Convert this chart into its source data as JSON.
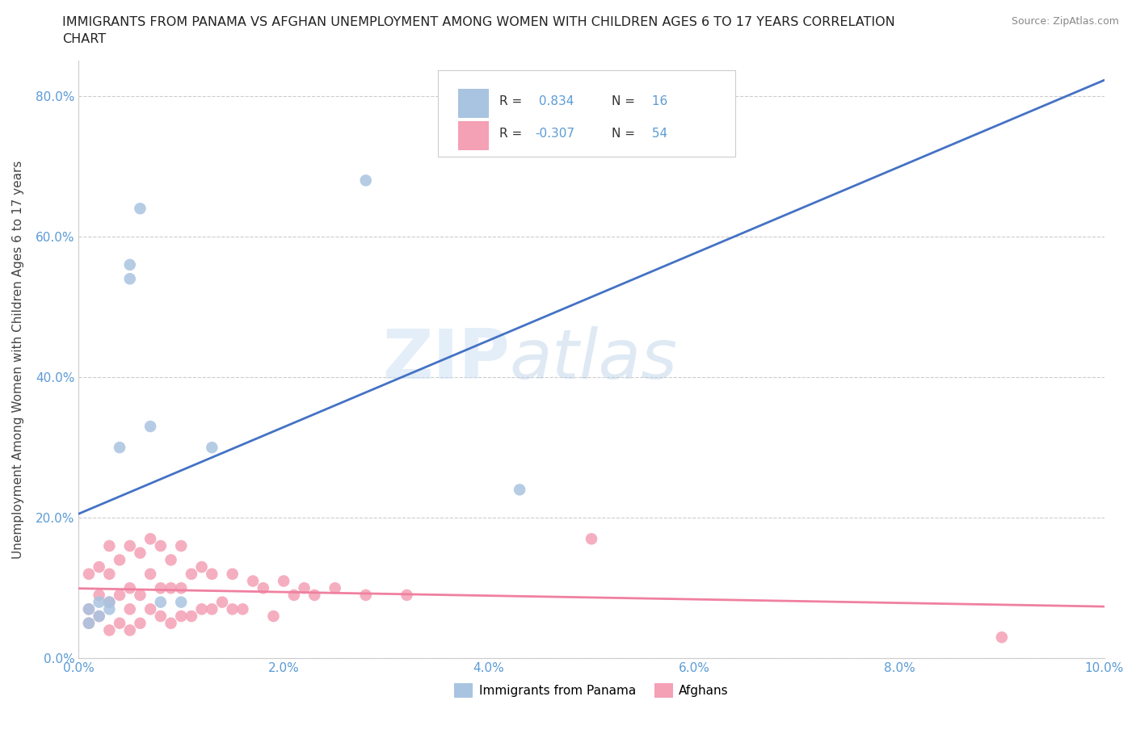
{
  "title_line1": "IMMIGRANTS FROM PANAMA VS AFGHAN UNEMPLOYMENT AMONG WOMEN WITH CHILDREN AGES 6 TO 17 YEARS CORRELATION",
  "title_line2": "CHART",
  "source": "Source: ZipAtlas.com",
  "ylabel": "Unemployment Among Women with Children Ages 6 to 17 years",
  "xlim": [
    0.0,
    0.1
  ],
  "ylim": [
    0.0,
    0.85
  ],
  "xticks": [
    0.0,
    0.02,
    0.04,
    0.06,
    0.08,
    0.1
  ],
  "xticklabels": [
    "0.0%",
    "2.0%",
    "4.0%",
    "6.0%",
    "8.0%",
    "10.0%"
  ],
  "yticks": [
    0.0,
    0.2,
    0.4,
    0.6,
    0.8
  ],
  "yticklabels": [
    "0.0%",
    "20.0%",
    "40.0%",
    "60.0%",
    "80.0%"
  ],
  "panama_color": "#a8c4e0",
  "afghan_color": "#f4a0b5",
  "panama_line_color": "#4472c4",
  "afghan_line_color": "#f080a0",
  "panama_R": 0.834,
  "panama_N": 16,
  "afghan_R": -0.307,
  "afghan_N": 54,
  "legend_label_panama": "Immigrants from Panama",
  "legend_label_afghan": "Afghans",
  "watermark_zip": "ZIP",
  "watermark_atlas": "atlas",
  "background_color": "#ffffff",
  "tick_color": "#5b9bd5",
  "panama_x": [
    0.001,
    0.001,
    0.002,
    0.002,
    0.003,
    0.003,
    0.004,
    0.005,
    0.005,
    0.006,
    0.007,
    0.008,
    0.01,
    0.013,
    0.028,
    0.043
  ],
  "panama_y": [
    0.05,
    0.07,
    0.06,
    0.08,
    0.08,
    0.07,
    0.3,
    0.54,
    0.56,
    0.64,
    0.33,
    0.08,
    0.08,
    0.3,
    0.68,
    0.24
  ],
  "afghan_x": [
    0.001,
    0.001,
    0.001,
    0.002,
    0.002,
    0.002,
    0.003,
    0.003,
    0.003,
    0.003,
    0.004,
    0.004,
    0.004,
    0.005,
    0.005,
    0.005,
    0.005,
    0.006,
    0.006,
    0.006,
    0.007,
    0.007,
    0.007,
    0.008,
    0.008,
    0.008,
    0.009,
    0.009,
    0.009,
    0.01,
    0.01,
    0.01,
    0.011,
    0.011,
    0.012,
    0.012,
    0.013,
    0.013,
    0.014,
    0.015,
    0.015,
    0.016,
    0.017,
    0.018,
    0.019,
    0.02,
    0.021,
    0.022,
    0.023,
    0.025,
    0.028,
    0.032,
    0.05,
    0.09
  ],
  "afghan_y": [
    0.05,
    0.07,
    0.12,
    0.06,
    0.09,
    0.13,
    0.04,
    0.08,
    0.12,
    0.16,
    0.05,
    0.09,
    0.14,
    0.04,
    0.07,
    0.1,
    0.16,
    0.05,
    0.09,
    0.15,
    0.07,
    0.12,
    0.17,
    0.06,
    0.1,
    0.16,
    0.05,
    0.1,
    0.14,
    0.06,
    0.1,
    0.16,
    0.06,
    0.12,
    0.07,
    0.13,
    0.07,
    0.12,
    0.08,
    0.07,
    0.12,
    0.07,
    0.11,
    0.1,
    0.06,
    0.11,
    0.09,
    0.1,
    0.09,
    0.1,
    0.09,
    0.09,
    0.17,
    0.03
  ]
}
